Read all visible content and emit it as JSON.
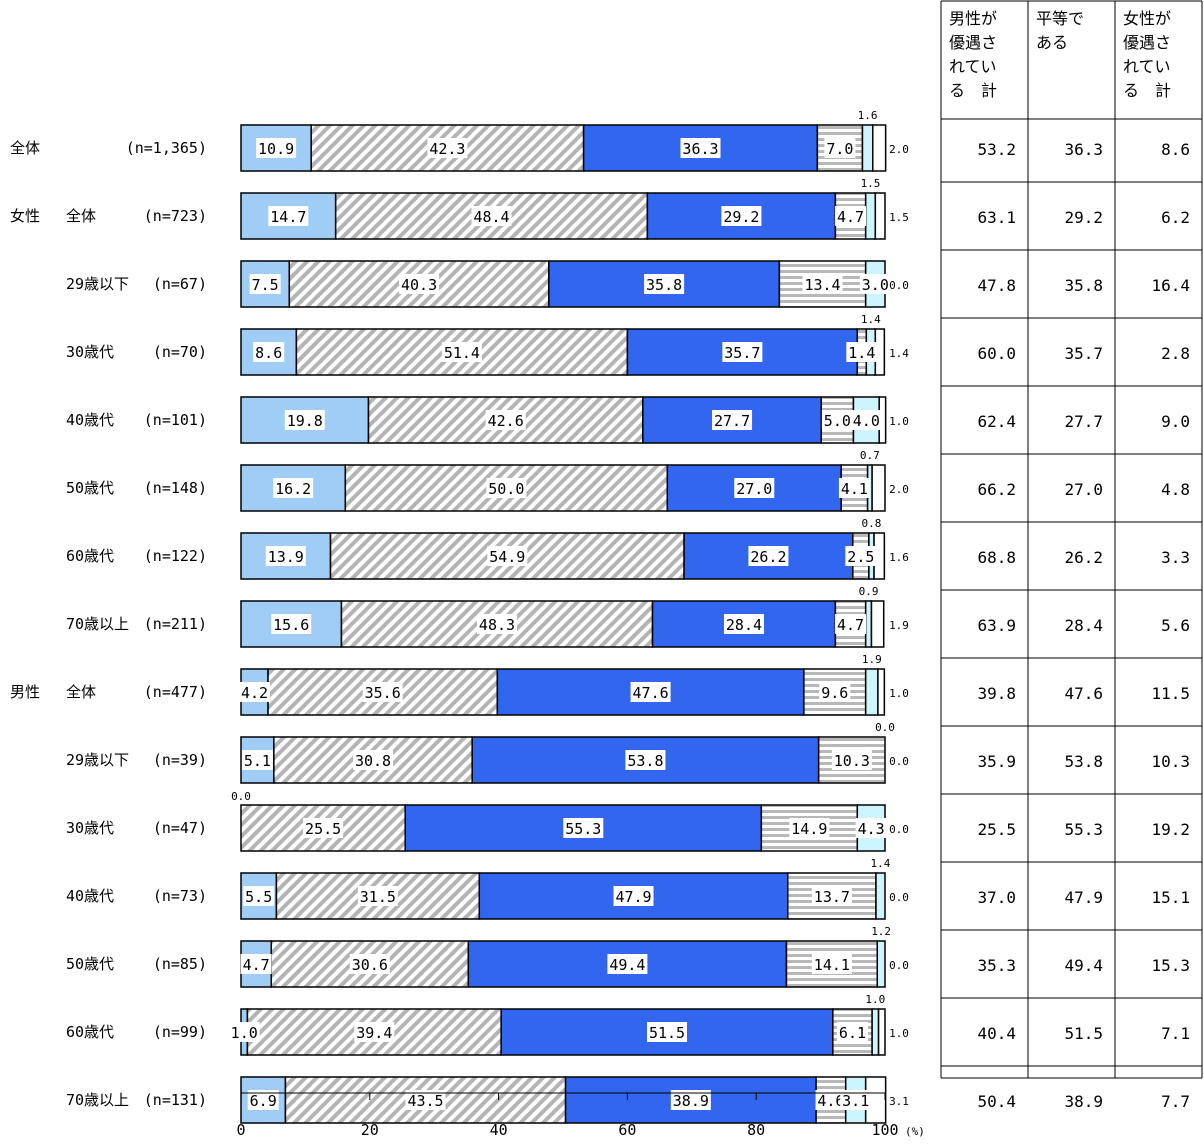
{
  "chart_data": {
    "type": "bar",
    "orientation": "horizontal",
    "stacked": true,
    "rows": [
      {
        "group": "全体",
        "label": "",
        "n": "(n=1,365)",
        "values": [
          10.9,
          42.3,
          36.3,
          7.0,
          1.6,
          2.0
        ],
        "value_labels": [
          "10.9",
          "42.3",
          "36.3",
          "7.0",
          "1.6",
          "2.0"
        ],
        "totals": [
          "53.2",
          "36.3",
          "8.6"
        ]
      },
      {
        "group": "女性",
        "label": "全体",
        "n": "(n=723)",
        "values": [
          14.7,
          48.4,
          29.2,
          4.7,
          1.5,
          1.5
        ],
        "value_labels": [
          "14.7",
          "48.4",
          "29.2",
          "4.7",
          "1.5",
          "1.5"
        ],
        "totals": [
          "63.1",
          "29.2",
          "6.2"
        ]
      },
      {
        "group": "",
        "label": "29歳以下",
        "n": "(n=67)",
        "values": [
          7.5,
          40.3,
          35.8,
          13.4,
          3.0,
          0.0
        ],
        "value_labels": [
          "7.5",
          "40.3",
          "35.8",
          "13.4",
          "3.0",
          "0.0"
        ],
        "totals": [
          "47.8",
          "35.8",
          "16.4"
        ]
      },
      {
        "group": "",
        "label": "30歳代",
        "n": "(n=70)",
        "values": [
          8.6,
          51.4,
          35.7,
          1.4,
          1.4,
          1.4
        ],
        "value_labels": [
          "8.6",
          "51.4",
          "35.7",
          "1.4",
          "1.4",
          "1.4"
        ],
        "totals": [
          "60.0",
          "35.7",
          "2.8"
        ]
      },
      {
        "group": "",
        "label": "40歳代",
        "n": "(n=101)",
        "values": [
          19.8,
          42.6,
          27.7,
          5.0,
          4.0,
          1.0
        ],
        "value_labels": [
          "19.8",
          "42.6",
          "27.7",
          "5.0",
          "4.0",
          "1.0"
        ],
        "totals": [
          "62.4",
          "27.7",
          "9.0"
        ]
      },
      {
        "group": "",
        "label": "50歳代",
        "n": "(n=148)",
        "values": [
          16.2,
          50.0,
          27.0,
          4.1,
          0.7,
          2.0
        ],
        "value_labels": [
          "16.2",
          "50.0",
          "27.0",
          "4.1",
          "0.7",
          "2.0"
        ],
        "totals": [
          "66.2",
          "27.0",
          "4.8"
        ]
      },
      {
        "group": "",
        "label": "60歳代",
        "n": "(n=122)",
        "values": [
          13.9,
          54.9,
          26.2,
          2.5,
          0.8,
          1.6
        ],
        "value_labels": [
          "13.9",
          "54.9",
          "26.2",
          "2.5",
          "0.8",
          "1.6"
        ],
        "totals": [
          "68.8",
          "26.2",
          "3.3"
        ]
      },
      {
        "group": "",
        "label": "70歳以上",
        "n": "(n=211)",
        "values": [
          15.6,
          48.3,
          28.4,
          4.7,
          0.9,
          1.9
        ],
        "value_labels": [
          "15.6",
          "48.3",
          "28.4",
          "4.7",
          "0.9",
          "1.9"
        ],
        "totals": [
          "63.9",
          "28.4",
          "5.6"
        ]
      },
      {
        "group": "男性",
        "label": "全体",
        "n": "(n=477)",
        "values": [
          4.2,
          35.6,
          47.6,
          9.6,
          1.9,
          1.0
        ],
        "value_labels": [
          "4.2",
          "35.6",
          "47.6",
          "9.6",
          "1.9",
          "1.0"
        ],
        "totals": [
          "39.8",
          "47.6",
          "11.5"
        ]
      },
      {
        "group": "",
        "label": "29歳以下",
        "n": "(n=39)",
        "values": [
          5.1,
          30.8,
          53.8,
          10.3,
          0.0,
          0.0
        ],
        "value_labels": [
          "5.1",
          "30.8",
          "53.8",
          "10.3",
          "0.0",
          "0.0"
        ],
        "totals": [
          "35.9",
          "53.8",
          "10.3"
        ]
      },
      {
        "group": "",
        "label": "30歳代",
        "n": "(n=47)",
        "values": [
          0.0,
          25.5,
          55.3,
          14.9,
          4.3,
          0.0
        ],
        "value_labels": [
          "0.0",
          "25.5",
          "55.3",
          "14.9",
          "4.3",
          "0.0"
        ],
        "totals": [
          "25.5",
          "55.3",
          "19.2"
        ]
      },
      {
        "group": "",
        "label": "40歳代",
        "n": "(n=73)",
        "values": [
          5.5,
          31.5,
          47.9,
          13.7,
          1.4,
          0.0
        ],
        "value_labels": [
          "5.5",
          "31.5",
          "47.9",
          "13.7",
          "1.4",
          "0.0"
        ],
        "totals": [
          "37.0",
          "47.9",
          "15.1"
        ]
      },
      {
        "group": "",
        "label": "50歳代",
        "n": "(n=85)",
        "values": [
          4.7,
          30.6,
          49.4,
          14.1,
          1.2,
          0.0
        ],
        "value_labels": [
          "4.7",
          "30.6",
          "49.4",
          "14.1",
          "1.2",
          "0.0"
        ],
        "totals": [
          "35.3",
          "49.4",
          "15.3"
        ]
      },
      {
        "group": "",
        "label": "60歳代",
        "n": "(n=99)",
        "values": [
          1.0,
          39.4,
          51.5,
          6.1,
          1.0,
          1.0
        ],
        "value_labels": [
          "1.0",
          "39.4",
          "51.5",
          "6.1",
          "1.0",
          "1.0"
        ],
        "totals": [
          "40.4",
          "51.5",
          "7.1"
        ]
      },
      {
        "group": "",
        "label": "70歳以上",
        "n": "(n=131)",
        "values": [
          6.9,
          43.5,
          38.9,
          4.6,
          3.1,
          3.1
        ],
        "value_labels": [
          "6.9",
          "43.5",
          "38.9",
          "4.6",
          "3.1",
          "3.1"
        ],
        "totals": [
          "50.4",
          "38.9",
          "7.7"
        ]
      }
    ],
    "segment_colors": [
      "#9fcdf5",
      "#bdbdbd",
      "#3366ee",
      "#bdbdbd",
      "#ccf5ff",
      "#ffffff"
    ],
    "x_ticks": [
      "0",
      "20",
      "40",
      "60",
      "80",
      "100"
    ],
    "x_unit": "(%)",
    "xlim": [
      0,
      100
    ],
    "table_headers": [
      [
        "男性が",
        "優遇さ",
        "れてい",
        "る　計"
      ],
      [
        "平等で",
        "ある"
      ],
      [
        "女性が",
        "優遇さ",
        "れてい",
        "る　計"
      ]
    ]
  }
}
